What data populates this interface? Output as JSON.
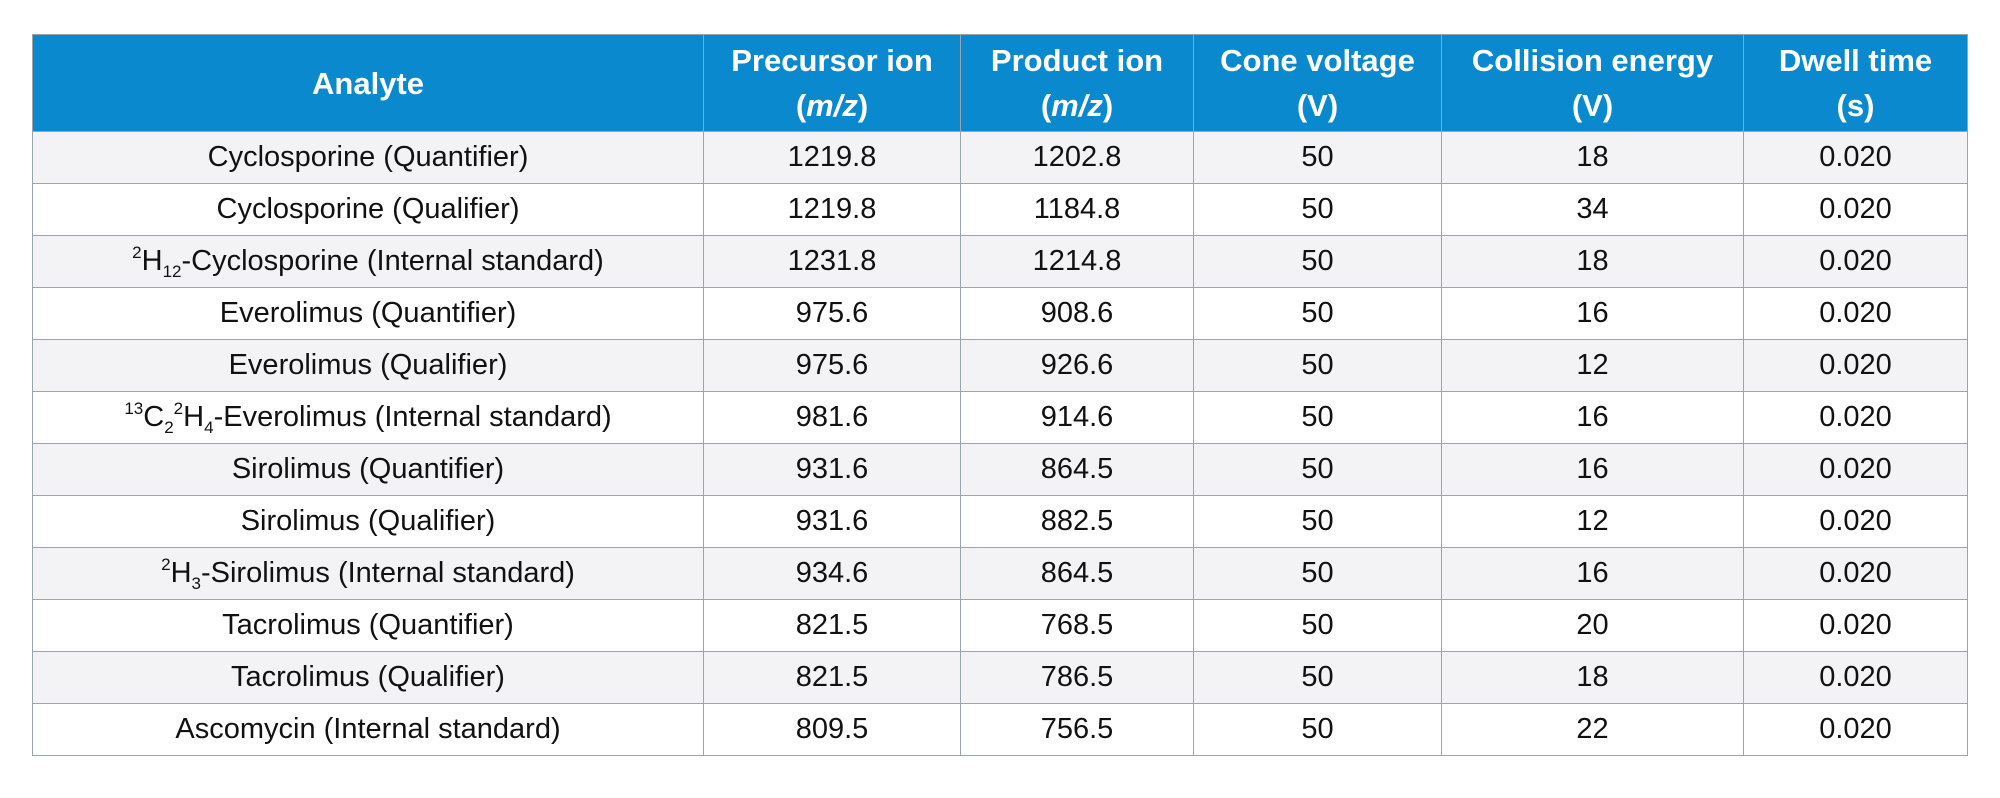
{
  "header": {
    "analyte": "Analyte",
    "precursor_line1": "Precursor ion",
    "precursor_line2": "m/z",
    "product_line1": "Product ion",
    "product_line2": "m/z",
    "cone_line1": "Cone voltage",
    "cone_line2": "(V)",
    "collision_line1": "Collision energy",
    "collision_line2": "(V)",
    "dwell_line1": "Dwell time",
    "dwell_line2": "(s)"
  },
  "colors": {
    "header_bg": "#0a89cf",
    "header_text": "#ffffff",
    "stripe": "#f3f3f5",
    "border": "#9aa4ad"
  },
  "rows": [
    {
      "analyte": "Cyclosporine (Quantifier)",
      "precursor": "1219.8",
      "product": "1202.8",
      "cone": "50",
      "collision": "18",
      "dwell": "0.020"
    },
    {
      "analyte": "Cyclosporine (Qualifier)",
      "precursor": "1219.8",
      "product": "1184.8",
      "cone": "50",
      "collision": "34",
      "dwell": "0.020"
    },
    {
      "analyte_parts": {
        "sup1": "2",
        "el1": "H",
        "sub1": "12",
        "rest": "-Cyclosporine (Internal standard)"
      },
      "precursor": "1231.8",
      "product": "1214.8",
      "cone": "50",
      "collision": "18",
      "dwell": "0.020"
    },
    {
      "analyte": "Everolimus (Quantifier)",
      "precursor": "975.6",
      "product": "908.6",
      "cone": "50",
      "collision": "16",
      "dwell": "0.020"
    },
    {
      "analyte": "Everolimus (Qualifier)",
      "precursor": "975.6",
      "product": "926.6",
      "cone": "50",
      "collision": "12",
      "dwell": "0.020"
    },
    {
      "analyte_parts": {
        "sup1": "13",
        "el1": "C",
        "sub1": "2",
        "sup2": "2",
        "el2": "H",
        "sub2": "4",
        "rest": "-Everolimus (Internal standard)"
      },
      "precursor": "981.6",
      "product": "914.6",
      "cone": "50",
      "collision": "16",
      "dwell": "0.020"
    },
    {
      "analyte": "Sirolimus (Quantifier)",
      "precursor": "931.6",
      "product": "864.5",
      "cone": "50",
      "collision": "16",
      "dwell": "0.020"
    },
    {
      "analyte": "Sirolimus (Qualifier)",
      "precursor": "931.6",
      "product": "882.5",
      "cone": "50",
      "collision": "12",
      "dwell": "0.020"
    },
    {
      "analyte_parts": {
        "sup1": "2",
        "el1": "H",
        "sub1": "3",
        "rest": "-Sirolimus (Internal standard)"
      },
      "precursor": "934.6",
      "product": "864.5",
      "cone": "50",
      "collision": "16",
      "dwell": "0.020"
    },
    {
      "analyte": "Tacrolimus (Quantifier)",
      "precursor": "821.5",
      "product": "768.5",
      "cone": "50",
      "collision": "20",
      "dwell": "0.020"
    },
    {
      "analyte": "Tacrolimus (Qualifier)",
      "precursor": "821.5",
      "product": "786.5",
      "cone": "50",
      "collision": "18",
      "dwell": "0.020"
    },
    {
      "analyte": "Ascomycin (Internal standard)",
      "precursor": "809.5",
      "product": "756.5",
      "cone": "50",
      "collision": "22",
      "dwell": "0.020"
    }
  ]
}
